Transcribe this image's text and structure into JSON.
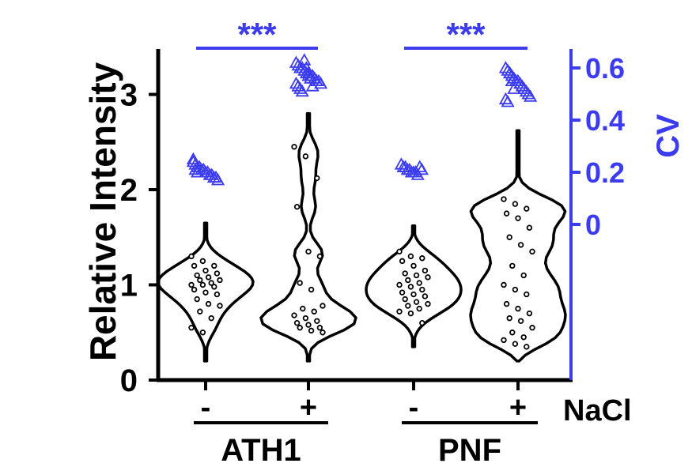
{
  "chart_data": {
    "type": "violin",
    "title": "",
    "xlabel": "",
    "ylabel": "Relative Intensity",
    "y2label": "CV",
    "ylim": [
      0,
      3.5
    ],
    "y2lim": [
      -0.3,
      0.7
    ],
    "yticks": [
      "0",
      "1",
      "2",
      "3"
    ],
    "y2ticks": [
      "0",
      "0.2",
      "0.4",
      "0.6"
    ],
    "treatment_label": "NaCl",
    "treatment_ticks": [
      "-",
      "+",
      "-",
      "+"
    ],
    "groups": [
      {
        "name": "ATH1",
        "significance": "***"
      },
      {
        "name": "PNF",
        "significance": "***"
      }
    ],
    "colors": {
      "primary": "#000000",
      "cv": "#3b3bf0"
    },
    "series": [
      {
        "group": "ATH1",
        "treatment": "-",
        "range": [
          0.2,
          1.65
        ],
        "points": [
          1.3,
          1.25,
          1.2,
          1.2,
          1.15,
          1.12,
          1.1,
          1.08,
          1.05,
          1.05,
          1.02,
          1.0,
          1.0,
          0.98,
          0.95,
          0.92,
          0.9,
          0.85,
          0.8,
          0.78,
          0.72,
          0.65,
          0.55,
          0.5
        ],
        "cv": [
          0.24,
          0.23,
          0.22,
          0.22,
          0.21,
          0.21,
          0.2,
          0.2,
          0.19,
          0.19,
          0.18,
          0.18,
          0.17,
          0.25,
          0.21,
          0.2
        ]
      },
      {
        "group": "ATH1",
        "treatment": "+",
        "range": [
          0.2,
          2.8
        ],
        "points": [
          2.45,
          2.35,
          2.12,
          1.82,
          1.35,
          1.3,
          1.02,
          0.95,
          0.78,
          0.75,
          0.72,
          0.68,
          0.65,
          0.62,
          0.6,
          0.58,
          0.55,
          0.55,
          0.52,
          0.5
        ],
        "cv": [
          0.62,
          0.61,
          0.6,
          0.6,
          0.59,
          0.58,
          0.58,
          0.57,
          0.57,
          0.56,
          0.55,
          0.55,
          0.54,
          0.54,
          0.53,
          0.52,
          0.51,
          0.63,
          0.6,
          0.57,
          0.56,
          0.53
        ]
      },
      {
        "group": "PNF",
        "treatment": "-",
        "range": [
          0.35,
          1.62
        ],
        "points": [
          1.35,
          1.3,
          1.28,
          1.25,
          1.2,
          1.15,
          1.12,
          1.1,
          1.08,
          1.05,
          1.02,
          1.0,
          0.98,
          0.95,
          0.92,
          0.9,
          0.88,
          0.85,
          0.82,
          0.8,
          0.78,
          0.75,
          0.72,
          0.7,
          0.6
        ],
        "cv": [
          0.23,
          0.22,
          0.22,
          0.21,
          0.21,
          0.2,
          0.2,
          0.2,
          0.19,
          0.22,
          0.21
        ]
      },
      {
        "group": "PNF",
        "treatment": "+",
        "range": [
          0.2,
          2.62
        ],
        "points": [
          1.9,
          1.85,
          1.8,
          1.75,
          1.7,
          1.6,
          1.5,
          1.42,
          1.35,
          1.2,
          1.1,
          1.0,
          0.95,
          0.9,
          0.8,
          0.75,
          0.7,
          0.65,
          0.62,
          0.55,
          0.5,
          0.45,
          0.42,
          0.38,
          0.35
        ],
        "cv": [
          0.6,
          0.59,
          0.58,
          0.57,
          0.56,
          0.55,
          0.55,
          0.54,
          0.53,
          0.52,
          0.51,
          0.5,
          0.49,
          0.48,
          0.47,
          0.58,
          0.55,
          0.52
        ]
      }
    ]
  }
}
